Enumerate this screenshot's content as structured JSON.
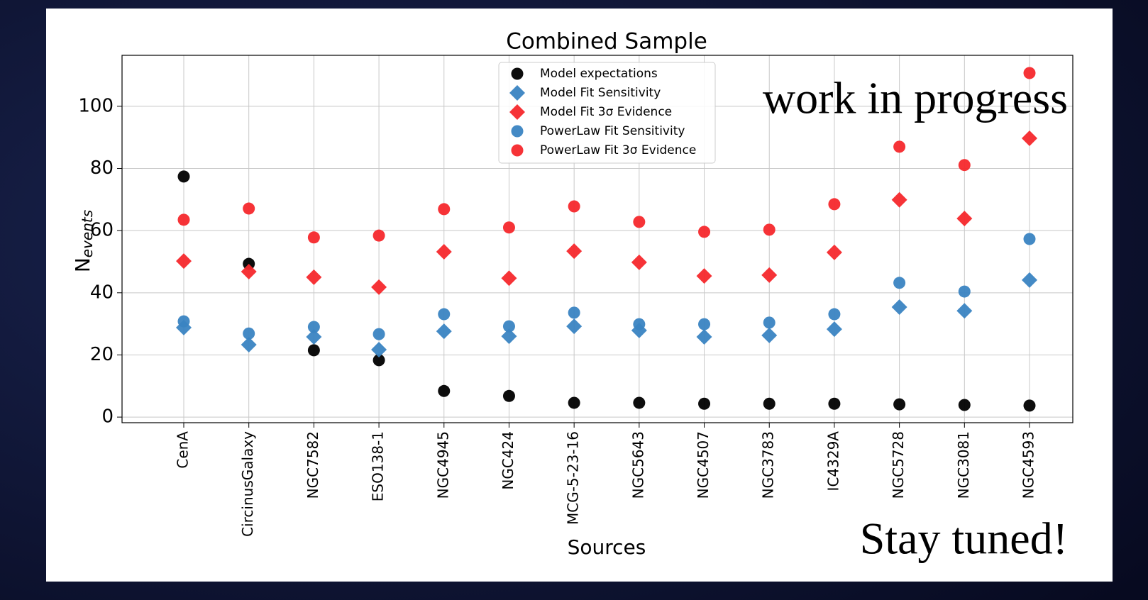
{
  "chart_data": {
    "type": "scatter",
    "title": "Combined Sample",
    "xlabel": "Sources",
    "ylabel": "N",
    "ylabel_sub": "events",
    "categories": [
      "CenA",
      "CircinusGalaxy",
      "NGC7582",
      "ESO138-1",
      "NGC4945",
      "NGC424",
      "MCG-5-23-16",
      "NGC5643",
      "NGC4507",
      "NGC3783",
      "IC4329A",
      "NGC5728",
      "NGC3081",
      "NGC4593"
    ],
    "series": [
      {
        "name": "Model expectations",
        "color": "#000000",
        "marker": "circle",
        "values": [
          77.4,
          49.3,
          21.5,
          18.3,
          8.4,
          6.8,
          4.6,
          4.6,
          4.3,
          4.3,
          4.3,
          4.1,
          3.9,
          3.7
        ]
      },
      {
        "name": "Model Fit Sensitivity",
        "color": "#3a84c2",
        "marker": "diamond",
        "values": [
          28.8,
          23.3,
          25.8,
          21.7,
          27.6,
          26.0,
          29.2,
          27.9,
          25.8,
          26.3,
          28.3,
          35.4,
          34.2,
          44.1
        ]
      },
      {
        "name": "Model Fit 3σ Evidence",
        "color": "#f5282c",
        "marker": "diamond",
        "values": [
          50.2,
          46.8,
          45.0,
          41.8,
          53.2,
          44.7,
          53.4,
          49.8,
          45.4,
          45.7,
          53.0,
          69.9,
          63.9,
          89.7
        ]
      },
      {
        "name": "PowerLaw Fit Sensitivity",
        "color": "#3a84c2",
        "marker": "circle",
        "values": [
          30.8,
          26.9,
          29.0,
          26.7,
          33.1,
          29.2,
          33.6,
          29.9,
          29.9,
          30.4,
          33.1,
          43.2,
          40.4,
          57.3
        ]
      },
      {
        "name": "PowerLaw Fit 3σ Evidence",
        "color": "#f5282c",
        "marker": "circle",
        "values": [
          63.5,
          67.1,
          57.8,
          58.4,
          66.9,
          61.0,
          67.8,
          62.8,
          59.6,
          60.3,
          68.5,
          87.0,
          81.1,
          110.7
        ]
      }
    ],
    "ylim": [
      -1.8,
      116.4
    ],
    "yticks": [
      0,
      20,
      40,
      60,
      80,
      100
    ],
    "grid": true,
    "legend": "upper center",
    "annotations": [
      "work in progress",
      "Stay tuned!"
    ],
    "annotation_color": "#a81a10"
  }
}
